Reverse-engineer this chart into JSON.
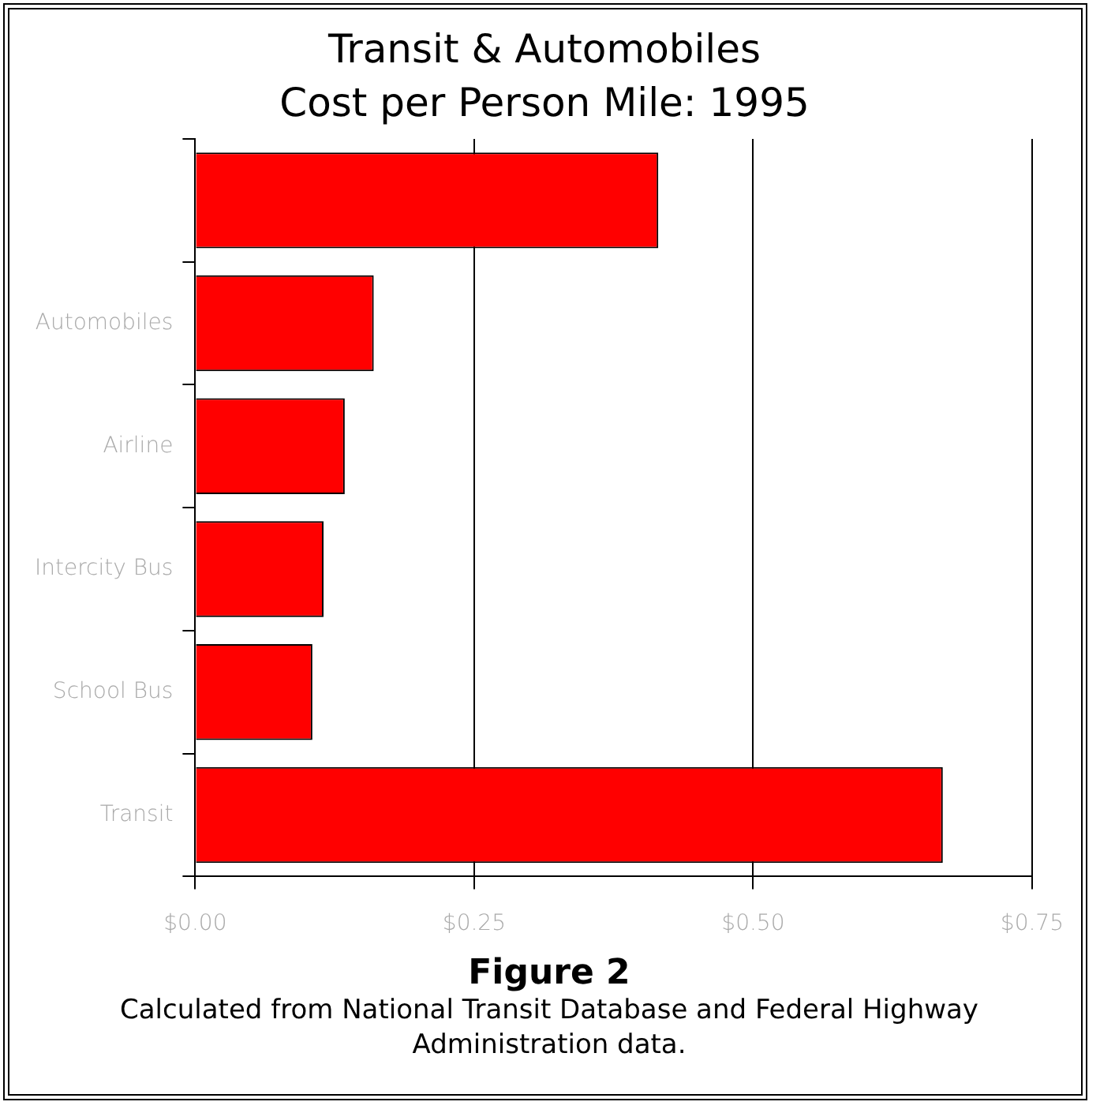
{
  "chart_data": {
    "type": "bar",
    "orientation": "horizontal",
    "title": "Transit & Automobiles",
    "subtitle": "Cost per Person Mile: 1995",
    "categories": [
      null,
      "Automobiles",
      "Airline",
      "Intercity Bus",
      "School Bus",
      "Transit"
    ],
    "values": [
      0.415,
      0.16,
      0.134,
      0.115,
      0.105,
      0.67
    ],
    "color": "#ff0000",
    "xlim": [
      0,
      0.75
    ],
    "xticks": [
      {
        "value": 0,
        "label": "$0.00"
      },
      {
        "value": 0.25,
        "label": "$0.25"
      },
      {
        "value": 0.5,
        "label": "$0.50"
      },
      {
        "value": 0.75,
        "label": "$0.75"
      }
    ],
    "grid": "x",
    "legend": false,
    "annotations": [
      "Figure 2",
      "Calculated from National Transit Database and Federal Highway Administration data."
    ]
  }
}
